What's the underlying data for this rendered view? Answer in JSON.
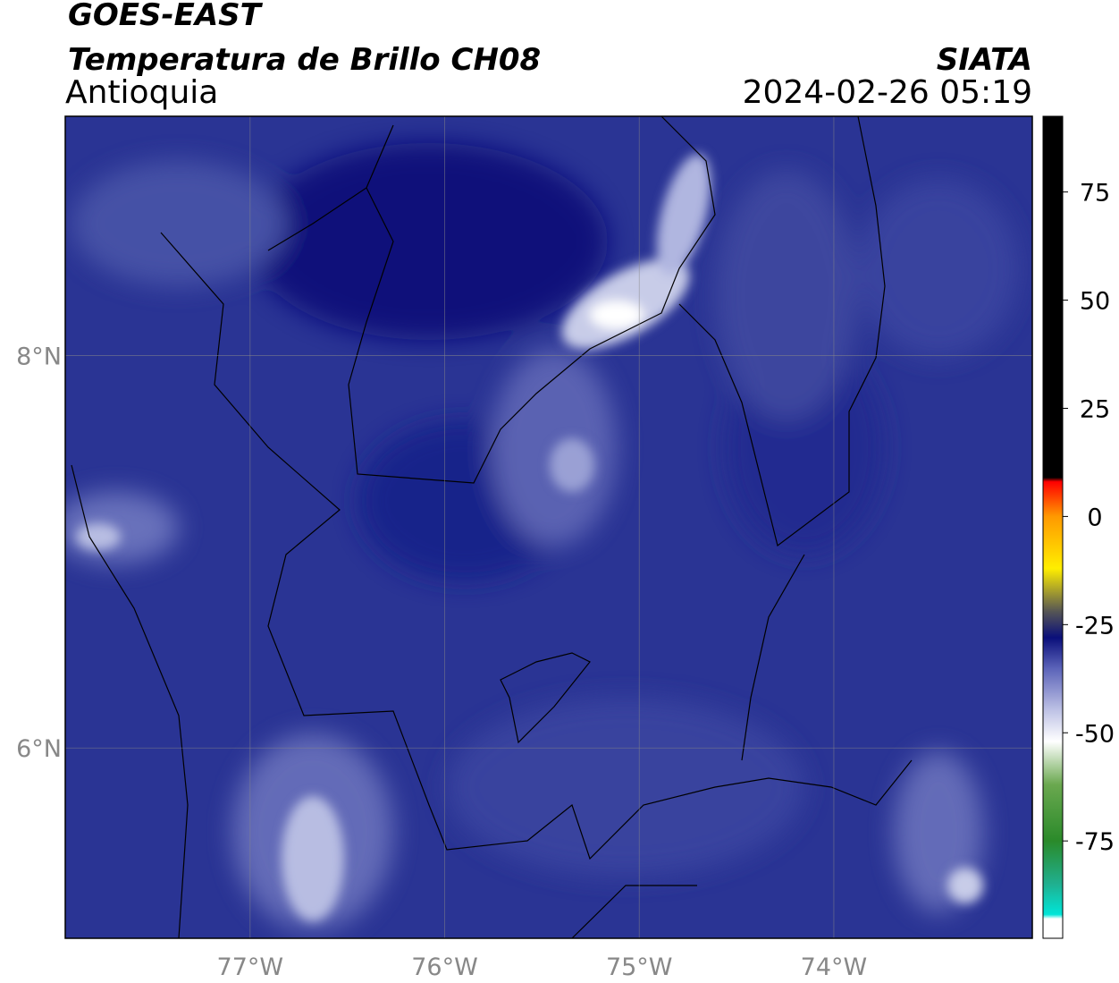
{
  "map_data": {
    "title": "GOES-EAST",
    "subtitle": "Temperatura de Brillo CH08",
    "region": "Antioquia",
    "source": "SIATA",
    "timestamp": "2024-02-26 05:19",
    "xlim": [
      -77.95,
      -72.98
    ],
    "ylim": [
      5.03,
      9.22
    ],
    "xticks": [
      {
        "value": -77,
        "label": "77°W"
      },
      {
        "value": -76,
        "label": "76°W"
      },
      {
        "value": -75,
        "label": "75°W"
      },
      {
        "value": -74,
        "label": "74°W"
      }
    ],
    "yticks": [
      {
        "value": 8,
        "label": "8°N"
      },
      {
        "value": 6,
        "label": "6°N"
      }
    ],
    "grid": true,
    "colorbar": {
      "clim": [
        -97.5,
        92.5
      ],
      "ticks": [
        75,
        50,
        25,
        0,
        -25,
        -50,
        -75
      ],
      "stops": [
        {
          "value": -97.5,
          "color": "#ffffff"
        },
        {
          "value": -93,
          "color": "#ffffff"
        },
        {
          "value": -92,
          "color": "#00e5d8"
        },
        {
          "value": -85,
          "color": "#20b090"
        },
        {
          "value": -75,
          "color": "#2a8a2a"
        },
        {
          "value": -62,
          "color": "#6aa84f"
        },
        {
          "value": -52,
          "color": "#ffffff"
        },
        {
          "value": -45,
          "color": "#c0c4e6"
        },
        {
          "value": -35,
          "color": "#5a62b8"
        },
        {
          "value": -28,
          "color": "#0a0f7a"
        },
        {
          "value": -22,
          "color": "#555555"
        },
        {
          "value": -12,
          "color": "#ffee00"
        },
        {
          "value": 0,
          "color": "#ff9900"
        },
        {
          "value": 8,
          "color": "#ff0000"
        },
        {
          "value": 9,
          "color": "#000000"
        },
        {
          "value": 92.5,
          "color": "#000000"
        }
      ]
    }
  }
}
